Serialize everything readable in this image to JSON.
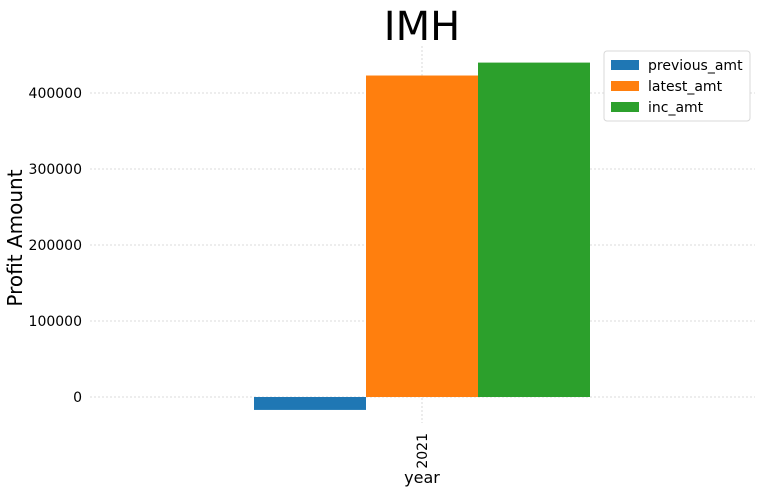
{
  "chart_data": {
    "type": "bar",
    "title": "IMH",
    "xlabel": "year",
    "ylabel": "Profit Amount",
    "categories": [
      "2021"
    ],
    "series": [
      {
        "name": "previous_amt",
        "values": [
          -17000
        ],
        "color": "#1f77b4"
      },
      {
        "name": "latest_amt",
        "values": [
          423000
        ],
        "color": "#ff7f0e"
      },
      {
        "name": "inc_amt",
        "values": [
          440000
        ],
        "color": "#2ca02c"
      }
    ],
    "ylim": [
      -60000,
      460000
    ],
    "yticks": [
      0,
      100000,
      200000,
      300000,
      400000
    ],
    "ytick_labels": [
      "0",
      "100000",
      "200000",
      "300000",
      "400000"
    ],
    "grid": true,
    "legend_position": "top-right"
  }
}
